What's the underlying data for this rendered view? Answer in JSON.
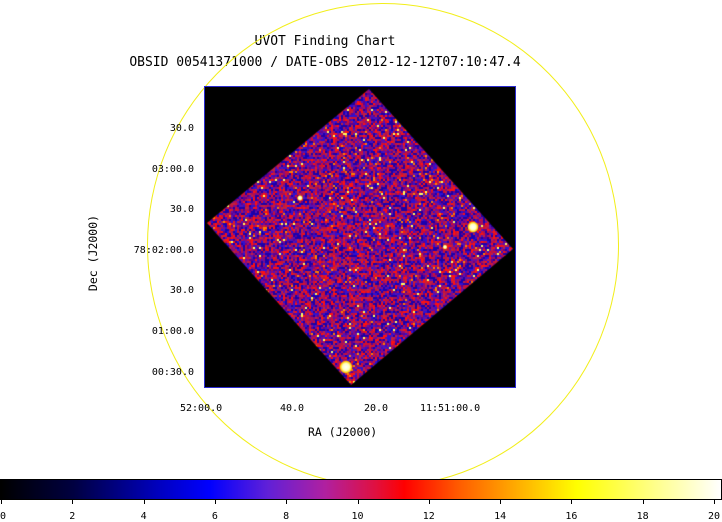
{
  "header": {
    "title": "UVOT Finding Chart",
    "subtitle": "OBSID 00541371000 / DATE-OBS 2012-12-12T07:10:47.4"
  },
  "axes": {
    "xlabel": "RA (J2000)",
    "ylabel": "Dec (J2000)",
    "x_tick_labels": [
      "52:00.0",
      "40.0",
      "20.0",
      "11:51:00.0"
    ],
    "y_tick_labels": [
      "30.0",
      "03:00.0",
      "30.0",
      "78:02:00.0",
      "30.0",
      "01:00.0",
      "00:30.0"
    ]
  },
  "colorbar": {
    "range": [
      0,
      20
    ],
    "tick_labels": [
      "0",
      "2",
      "4",
      "6",
      "8",
      "10",
      "12",
      "14",
      "16",
      "18",
      "20"
    ],
    "colormap": "heat (black-blue-red-yellow-white)"
  },
  "colors": {
    "field_circle": "#f2ee1a",
    "frame": "#2a2ad0",
    "background": "#000000"
  }
}
